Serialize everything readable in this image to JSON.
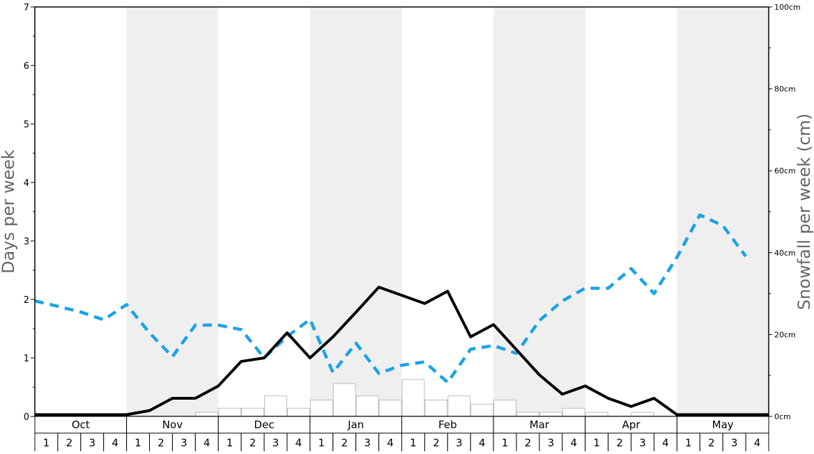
{
  "chart_data": {
    "type": "line",
    "ylabel_left": "Days per week",
    "ylabel_right": "Snowfall per week (cm)",
    "left_axis": {
      "ylim": [
        0,
        7
      ],
      "ticks": [
        0,
        1,
        2,
        3,
        4,
        5,
        6,
        7
      ]
    },
    "right_axis": {
      "ylim": [
        0,
        100
      ],
      "ticks": [
        "0cm",
        "20cm",
        "40cm",
        "60cm",
        "80cm",
        "100cm"
      ]
    },
    "months": [
      "Oct",
      "Nov",
      "Dec",
      "Jan",
      "Feb",
      "Mar",
      "Apr",
      "May"
    ],
    "weeks": [
      "1",
      "2",
      "3",
      "4"
    ],
    "shaded_months": [
      "Nov",
      "Jan",
      "Mar",
      "May"
    ],
    "grid": false,
    "legend": "none",
    "colors": {
      "snow_days_line": "#000000",
      "dashed_line": "#1aa3e8",
      "bars_border": "#bbbbbb",
      "shade": "#efefef"
    },
    "series": [
      {
        "style": "solid-black-line",
        "axis": "left",
        "values": [
          0.03,
          0.03,
          0.03,
          0.03,
          0.03,
          0.1,
          0.31,
          0.31,
          0.52,
          0.94,
          1.0,
          1.43,
          1.0,
          1.36,
          1.78,
          2.21,
          2.07,
          1.93,
          2.14,
          1.36,
          1.57,
          1.14,
          0.71,
          0.38,
          0.52,
          0.31,
          0.17,
          0.31,
          0.03,
          0.03,
          0.03,
          0.03
        ]
      },
      {
        "style": "dashed-blue-line",
        "axis": "right",
        "values": [
          28.2,
          26.9,
          25.5,
          23.6,
          27.3,
          20.4,
          14.6,
          22.3,
          22.3,
          21.2,
          14.3,
          19.5,
          23.7,
          10.7,
          17.9,
          10.5,
          12.5,
          13.3,
          8.3,
          16.4,
          17.3,
          15.4,
          23.4,
          28.2,
          31.3,
          31.3,
          36.1,
          30.0,
          38.9,
          49.2,
          46.6,
          39.1
        ]
      },
      {
        "style": "white-bars",
        "axis": "left",
        "values": [
          0,
          0,
          0,
          0,
          0,
          0,
          0,
          0.07,
          0.14,
          0.14,
          0.35,
          0.14,
          0.28,
          0.56,
          0.35,
          0.28,
          0.63,
          0.28,
          0.35,
          0.21,
          0.28,
          0.07,
          0.07,
          0.14,
          0.07,
          0,
          0.07,
          0,
          0,
          0,
          0,
          0
        ]
      }
    ]
  }
}
